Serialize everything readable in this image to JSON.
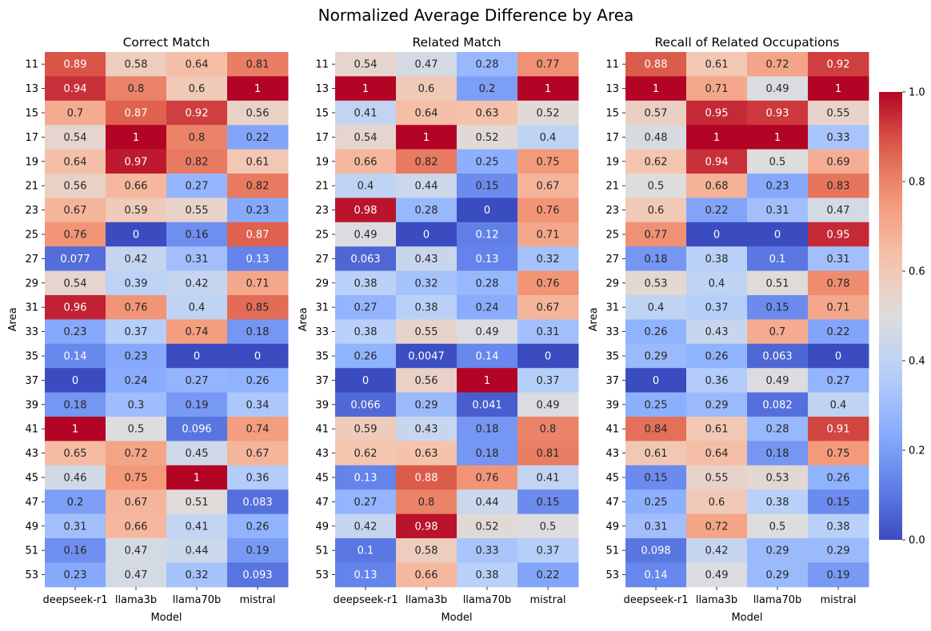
{
  "figure": {
    "suptitle": "Normalized Average Difference by Area"
  },
  "chart_data": {
    "type": "heatmap",
    "rows": [
      "11",
      "13",
      "15",
      "17",
      "19",
      "21",
      "23",
      "25",
      "27",
      "29",
      "31",
      "33",
      "35",
      "37",
      "39",
      "41",
      "43",
      "45",
      "47",
      "49",
      "51",
      "53"
    ],
    "columns": [
      "deepseek-r1",
      "llama3b",
      "llama70b",
      "mistral"
    ],
    "xlabel": "Model",
    "ylabel": "Area",
    "colormap": "coolwarm",
    "color_range": [
      0,
      1
    ],
    "colorbar": {
      "ticks": [
        "0.0",
        "0.2",
        "0.4",
        "0.6",
        "0.8",
        "1.0"
      ],
      "placement": "right"
    },
    "panels": [
      {
        "title": "Correct Match",
        "labels": [
          [
            "0.89",
            "0.58",
            "0.64",
            "0.81"
          ],
          [
            "0.94",
            "0.8",
            "0.6",
            "1"
          ],
          [
            "0.7",
            "0.87",
            "0.92",
            "0.56"
          ],
          [
            "0.54",
            "1",
            "0.8",
            "0.22"
          ],
          [
            "0.64",
            "0.97",
            "0.82",
            "0.61"
          ],
          [
            "0.56",
            "0.66",
            "0.27",
            "0.82"
          ],
          [
            "0.67",
            "0.59",
            "0.55",
            "0.23"
          ],
          [
            "0.76",
            "0",
            "0.16",
            "0.87"
          ],
          [
            "0.077",
            "0.42",
            "0.31",
            "0.13"
          ],
          [
            "0.54",
            "0.39",
            "0.42",
            "0.71"
          ],
          [
            "0.96",
            "0.76",
            "0.4",
            "0.85"
          ],
          [
            "0.23",
            "0.37",
            "0.74",
            "0.18"
          ],
          [
            "0.14",
            "0.23",
            "0",
            "0"
          ],
          [
            "0",
            "0.24",
            "0.27",
            "0.26"
          ],
          [
            "0.18",
            "0.3",
            "0.19",
            "0.34"
          ],
          [
            "1",
            "0.5",
            "0.096",
            "0.74"
          ],
          [
            "0.65",
            "0.72",
            "0.45",
            "0.67"
          ],
          [
            "0.46",
            "0.75",
            "1",
            "0.36"
          ],
          [
            "0.2",
            "0.67",
            "0.51",
            "0.083"
          ],
          [
            "0.31",
            "0.66",
            "0.41",
            "0.26"
          ],
          [
            "0.16",
            "0.47",
            "0.44",
            "0.19"
          ],
          [
            "0.23",
            "0.47",
            "0.32",
            "0.093"
          ]
        ]
      },
      {
        "title": "Related Match",
        "labels": [
          [
            "0.54",
            "0.47",
            "0.28",
            "0.77"
          ],
          [
            "1",
            "0.6",
            "0.2",
            "1"
          ],
          [
            "0.41",
            "0.64",
            "0.63",
            "0.52"
          ],
          [
            "0.54",
            "1",
            "0.52",
            "0.4"
          ],
          [
            "0.66",
            "0.82",
            "0.25",
            "0.75"
          ],
          [
            "0.4",
            "0.44",
            "0.15",
            "0.67"
          ],
          [
            "0.98",
            "0.28",
            "0",
            "0.76"
          ],
          [
            "0.49",
            "0",
            "0.12",
            "0.71"
          ],
          [
            "0.063",
            "0.43",
            "0.13",
            "0.32"
          ],
          [
            "0.38",
            "0.32",
            "0.28",
            "0.76"
          ],
          [
            "0.27",
            "0.38",
            "0.24",
            "0.67"
          ],
          [
            "0.38",
            "0.55",
            "0.49",
            "0.31"
          ],
          [
            "0.26",
            "0.0047",
            "0.14",
            "0"
          ],
          [
            "0",
            "0.56",
            "1",
            "0.37"
          ],
          [
            "0.066",
            "0.29",
            "0.041",
            "0.49"
          ],
          [
            "0.59",
            "0.43",
            "0.18",
            "0.8"
          ],
          [
            "0.62",
            "0.63",
            "0.18",
            "0.81"
          ],
          [
            "0.13",
            "0.88",
            "0.76",
            "0.41"
          ],
          [
            "0.27",
            "0.8",
            "0.44",
            "0.15"
          ],
          [
            "0.42",
            "0.98",
            "0.52",
            "0.5"
          ],
          [
            "0.1",
            "0.58",
            "0.33",
            "0.37"
          ],
          [
            "0.13",
            "0.66",
            "0.38",
            "0.22"
          ]
        ]
      },
      {
        "title": "Recall of Related Occupations",
        "labels": [
          [
            "0.88",
            "0.61",
            "0.72",
            "0.92"
          ],
          [
            "1",
            "0.71",
            "0.49",
            "1"
          ],
          [
            "0.57",
            "0.95",
            "0.93",
            "0.55"
          ],
          [
            "0.48",
            "1",
            "1",
            "0.33"
          ],
          [
            "0.62",
            "0.94",
            "0.5",
            "0.69"
          ],
          [
            "0.5",
            "0.68",
            "0.23",
            "0.83"
          ],
          [
            "0.6",
            "0.22",
            "0.31",
            "0.47"
          ],
          [
            "0.77",
            "0",
            "0",
            "0.95"
          ],
          [
            "0.18",
            "0.38",
            "0.1",
            "0.31"
          ],
          [
            "0.53",
            "0.4",
            "0.51",
            "0.78"
          ],
          [
            "0.4",
            "0.37",
            "0.15",
            "0.71"
          ],
          [
            "0.26",
            "0.43",
            "0.7",
            "0.22"
          ],
          [
            "0.29",
            "0.26",
            "0.063",
            "0"
          ],
          [
            "0",
            "0.36",
            "0.49",
            "0.27"
          ],
          [
            "0.25",
            "0.29",
            "0.082",
            "0.4"
          ],
          [
            "0.84",
            "0.61",
            "0.28",
            "0.91"
          ],
          [
            "0.61",
            "0.64",
            "0.18",
            "0.75"
          ],
          [
            "0.15",
            "0.55",
            "0.53",
            "0.26"
          ],
          [
            "0.25",
            "0.6",
            "0.38",
            "0.15"
          ],
          [
            "0.31",
            "0.72",
            "0.5",
            "0.38"
          ],
          [
            "0.098",
            "0.42",
            "0.29",
            "0.29"
          ],
          [
            "0.14",
            "0.49",
            "0.29",
            "0.19"
          ]
        ]
      }
    ]
  }
}
